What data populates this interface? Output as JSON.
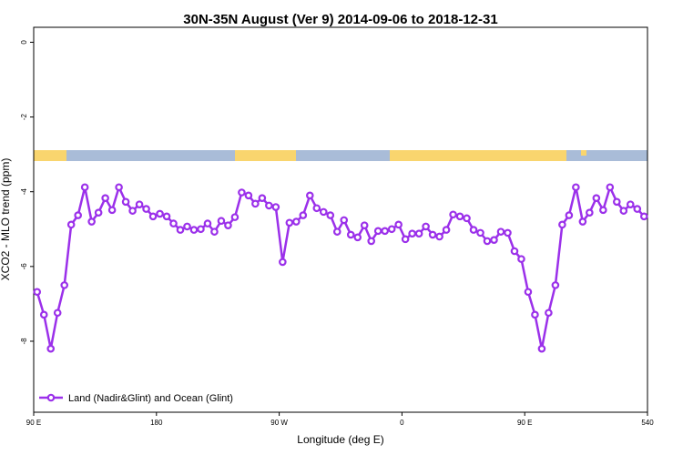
{
  "chart_data": {
    "type": "line",
    "title": "30N-35N August (Ver 9)   2014-09-06 to 2018-12-31",
    "x_label": "Longitude (deg E)",
    "y_label": "XCO2 - MLO trend (ppm)",
    "xlim": [
      90,
      540
    ],
    "ylim": [
      -9.9,
      0.4
    ],
    "xticks": [
      {
        "value": 90,
        "label": "90 E"
      },
      180,
      {
        "value": 270,
        "label": "90 W"
      },
      {
        "value": 360,
        "label": "0"
      },
      {
        "value": 450,
        "label": "90 E"
      },
      540
    ],
    "yticks": [
      0,
      -2,
      -4,
      -6,
      -8
    ],
    "legend": "bottom-left",
    "x": [
      92.5,
      97.5,
      102.5,
      107.5,
      112.5,
      117.5,
      122.5,
      127.5,
      132.5,
      137.5,
      142.5,
      147.5,
      152.5,
      157.5,
      162.5,
      167.5,
      172.5,
      177.5,
      182.5,
      187.5,
      192.5,
      197.5,
      202.5,
      207.5,
      212.5,
      217.5,
      222.5,
      227.5,
      232.5,
      237.5,
      242.5,
      247.5,
      252.5,
      257.5,
      262.5,
      267.5,
      272.5,
      277.5,
      282.5,
      287.5,
      292.5,
      297.5,
      302.5,
      307.5,
      312.5,
      317.5,
      322.5,
      327.5,
      332.5,
      337.5,
      342.5,
      347.5,
      352.5,
      357.5,
      362.5,
      367.5,
      372.5,
      377.5,
      382.5,
      387.5,
      392.5,
      397.5,
      402.5,
      407.5,
      412.5,
      417.5,
      422.5,
      427.5,
      432.5,
      437.5,
      442.5,
      447.5,
      452.5,
      457.5,
      462.5,
      467.5,
      472.5,
      477.5,
      482.5,
      487.5,
      492.5,
      497.5,
      502.5,
      507.5,
      512.5,
      517.5,
      522.5,
      527.5,
      532.5,
      537.5
    ],
    "series": [
      {
        "name": "Land (Nadir&Glint) and Ocean (Glint)",
        "color": "#9b30ea",
        "values": [
          -6.68,
          -7.29,
          -8.2,
          -7.24,
          -6.5,
          -4.88,
          -4.63,
          -3.88,
          -4.8,
          -4.56,
          -4.17,
          -4.49,
          -3.88,
          -4.27,
          -4.51,
          -4.34,
          -4.46,
          -4.66,
          -4.59,
          -4.66,
          -4.85,
          -5.02,
          -4.93,
          -5.02,
          -5.0,
          -4.85,
          -5.07,
          -4.78,
          -4.9,
          -4.68,
          -4.02,
          -4.1,
          -4.32,
          -4.17,
          -4.37,
          -4.41,
          -5.88,
          -4.83,
          -4.8,
          -4.63,
          -4.1,
          -4.44,
          -4.54,
          -4.63,
          -5.07,
          -4.76,
          -5.15,
          -5.22,
          -4.9,
          -5.32,
          -5.05,
          -5.05,
          -5.0,
          -4.88,
          -5.27,
          -5.12,
          -5.12,
          -4.93,
          -5.15,
          -5.2,
          -5.02,
          -4.61,
          -4.66,
          -4.71,
          -5.02,
          -5.1,
          -5.32,
          -5.29,
          -5.07,
          -5.1,
          -5.59,
          -5.8,
          -6.68,
          -7.29,
          -8.2,
          -7.24,
          -6.5,
          -4.88,
          -4.63,
          -3.88,
          -4.8,
          -4.56,
          -4.17,
          -4.49,
          -3.88,
          -4.27,
          -4.51,
          -4.34,
          -4.46,
          -4.66
        ]
      }
    ]
  }
}
